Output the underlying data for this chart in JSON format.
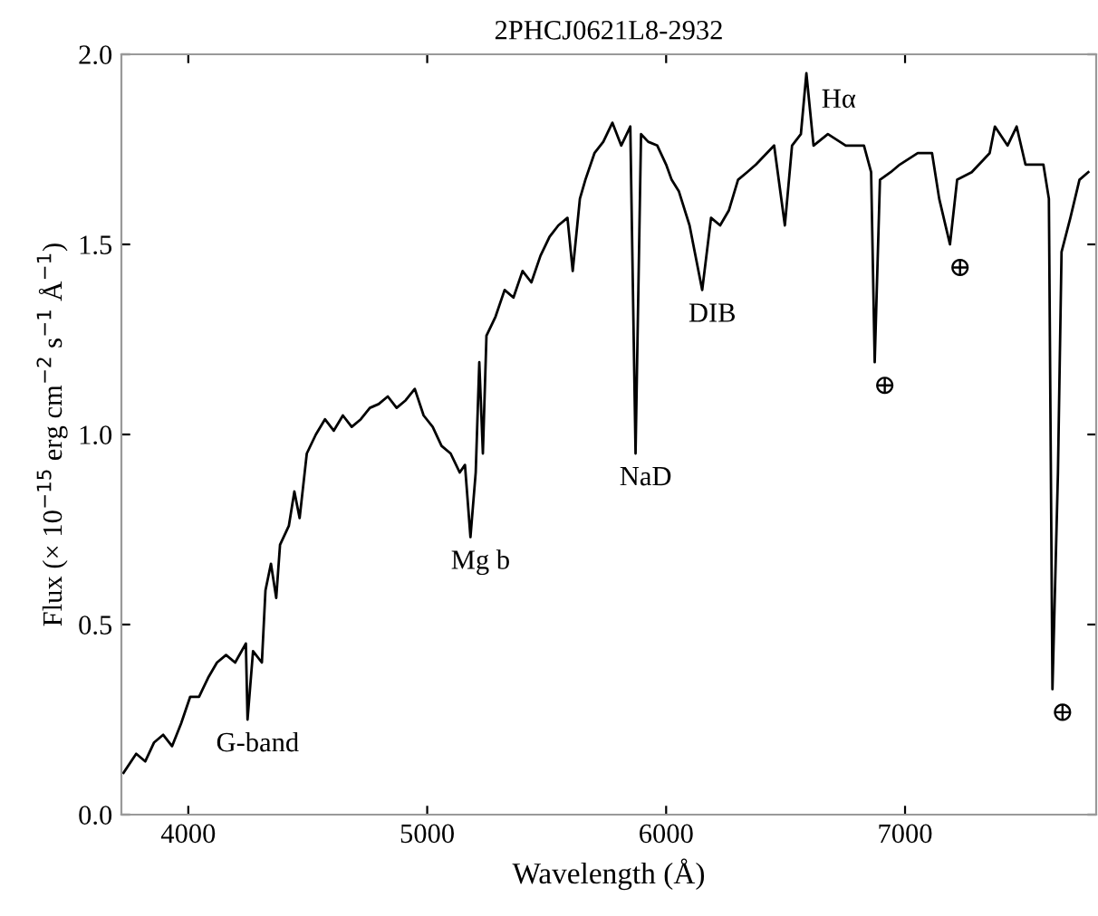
{
  "chart_data": {
    "type": "line",
    "title": "2PHCJ0621L8-2932",
    "xlabel": "Wavelength (Å)",
    "ylabel": "Flux (× 10$^{−15}$ erg cm$^{−2}$ s$^{−1}$ Å$^{−1}$)",
    "x": [
      3729,
      3782,
      3820,
      3857,
      3895,
      3932,
      3970,
      4008,
      4045,
      4083,
      4120,
      4158,
      4196,
      4241,
      4248,
      4271,
      4308,
      4323,
      4346,
      4368,
      4384,
      4421,
      4444,
      4466,
      4496,
      4534,
      4572,
      4609,
      4647,
      4684,
      4722,
      4760,
      4797,
      4835,
      4872,
      4910,
      4948,
      4985,
      5023,
      5060,
      5098,
      5136,
      5158,
      5181,
      5203,
      5218,
      5233,
      5248,
      5286,
      5324,
      5361,
      5399,
      5436,
      5474,
      5512,
      5549,
      5587,
      5609,
      5639,
      5662,
      5700,
      5737,
      5775,
      5812,
      5850,
      5872,
      5895,
      5925,
      5963,
      6000,
      6023,
      6053,
      6098,
      6151,
      6188,
      6226,
      6263,
      6301,
      6339,
      6376,
      6452,
      6497,
      6527,
      6564,
      6587,
      6617,
      6677,
      6752,
      6828,
      6858,
      6873,
      6895,
      6940,
      6978,
      7053,
      7113,
      7143,
      7188,
      7218,
      7279,
      7354,
      7376,
      7429,
      7467,
      7504,
      7579,
      7602,
      7617,
      7640,
      7655,
      7692,
      7730,
      7767
    ],
    "series": [
      {
        "color": "#000000",
        "values": [
          0.11,
          0.16,
          0.14,
          0.19,
          0.21,
          0.18,
          0.24,
          0.31,
          0.31,
          0.36,
          0.4,
          0.42,
          0.4,
          0.45,
          0.25,
          0.43,
          0.4,
          0.59,
          0.66,
          0.57,
          0.71,
          0.76,
          0.85,
          0.78,
          0.95,
          1.0,
          1.04,
          1.01,
          1.05,
          1.02,
          1.04,
          1.07,
          1.08,
          1.1,
          1.07,
          1.09,
          1.12,
          1.05,
          1.02,
          0.97,
          0.95,
          0.9,
          0.92,
          0.73,
          0.9,
          1.19,
          0.95,
          1.26,
          1.31,
          1.38,
          1.36,
          1.43,
          1.4,
          1.47,
          1.52,
          1.55,
          1.57,
          1.43,
          1.62,
          1.67,
          1.74,
          1.77,
          1.82,
          1.76,
          1.81,
          0.95,
          1.79,
          1.77,
          1.76,
          1.71,
          1.67,
          1.64,
          1.55,
          1.38,
          1.57,
          1.55,
          1.59,
          1.67,
          1.69,
          1.71,
          1.76,
          1.55,
          1.76,
          1.79,
          1.95,
          1.76,
          1.79,
          1.76,
          1.76,
          1.69,
          1.19,
          1.67,
          1.69,
          1.71,
          1.74,
          1.74,
          1.62,
          1.5,
          1.67,
          1.69,
          1.74,
          1.81,
          1.76,
          1.81,
          1.71,
          1.71,
          1.62,
          0.33,
          0.9,
          1.48,
          1.57,
          1.67,
          1.69
        ]
      }
    ],
    "xlim": [
      3720,
      7800
    ],
    "xticks": [
      4000,
      5000,
      6000,
      7000
    ],
    "ylim": [
      0,
      2
    ],
    "yticks": [
      {
        "value": 0,
        "label": "0.0"
      },
      0.5,
      {
        "value": 1,
        "label": "1.0"
      },
      1.5,
      {
        "value": 2,
        "label": "2.0"
      }
    ],
    "grid": false,
    "legend": false,
    "line_style": "solid",
    "marker": "none",
    "annotations": [
      {
        "text": "G-band",
        "x": 4248,
        "y": 0.25
      },
      {
        "text": "Mg b",
        "x": 5181,
        "y": 0.73
      },
      {
        "text": "NaD",
        "x": 5872,
        "y": 0.95
      },
      {
        "text": "DIB",
        "x": 6151,
        "y": 1.38
      },
      {
        "text": "Hα",
        "x": 6587,
        "y": 1.95
      },
      {
        "text": "⊕",
        "x": 6873,
        "y": 1.19
      },
      {
        "text": "⊕",
        "x": 7188,
        "y": 1.5
      },
      {
        "text": "⊕",
        "x": 7617,
        "y": 0.33
      }
    ]
  }
}
